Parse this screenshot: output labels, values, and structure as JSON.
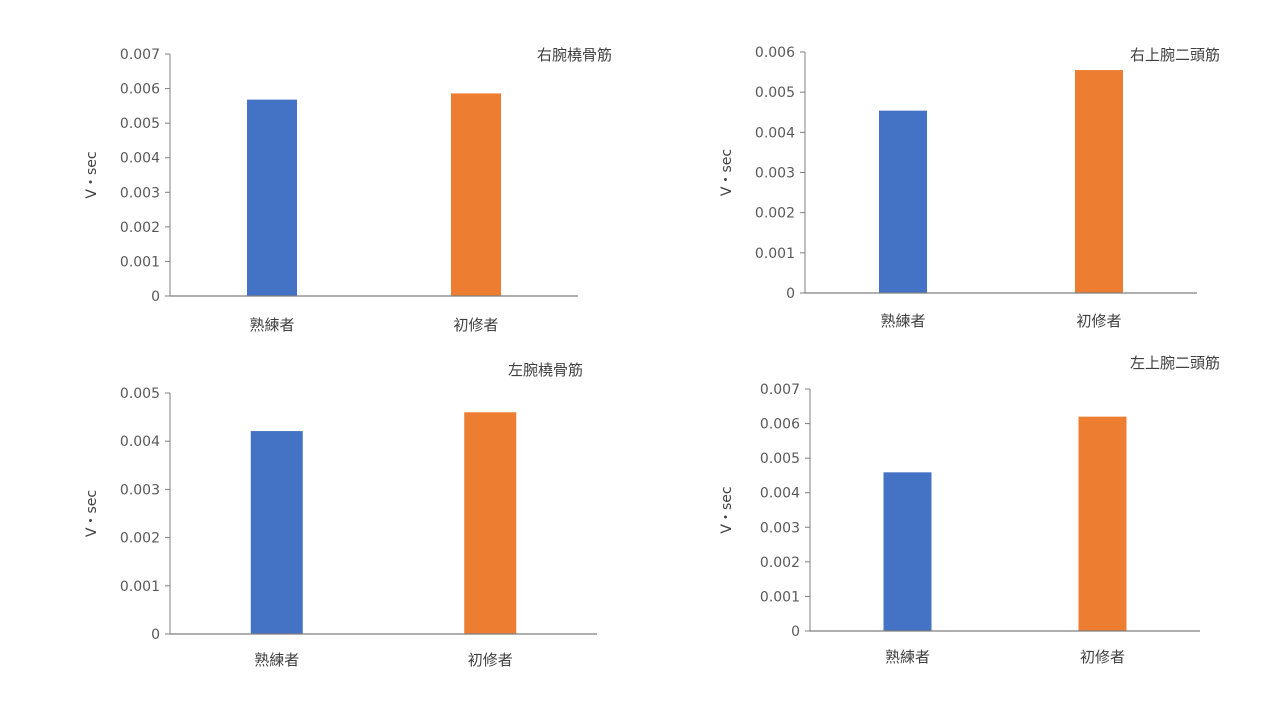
{
  "chart_data": [
    {
      "type": "bar",
      "title": "右腕橈骨筋",
      "categories": [
        "熟練者",
        "初修者"
      ],
      "values": [
        0.00568,
        0.00586
      ],
      "ylabel": "V・sec",
      "ylim": [
        0,
        0.007
      ],
      "yticks": [
        "0",
        "0.001",
        "0.002",
        "0.003",
        "0.004",
        "0.005",
        "0.006",
        "0.007"
      ],
      "colors": [
        "#4472C4",
        "#ED7D31"
      ],
      "grid": false
    },
    {
      "type": "bar",
      "title": "右上腕二頭筋",
      "categories": [
        "熟練者",
        "初修者"
      ],
      "values": [
        0.00454,
        0.00555
      ],
      "ylabel": "V・sec",
      "ylim": [
        0,
        0.006
      ],
      "yticks": [
        "0",
        "0.001",
        "0.002",
        "0.003",
        "0.004",
        "0.005",
        "0.006"
      ],
      "colors": [
        "#4472C4",
        "#ED7D31"
      ],
      "grid": false
    },
    {
      "type": "bar",
      "title": "左腕橈骨筋",
      "categories": [
        "熟練者",
        "初修者"
      ],
      "values": [
        0.00421,
        0.0046
      ],
      "ylabel": "V・sec",
      "ylim": [
        0,
        0.005
      ],
      "yticks": [
        "0",
        "0.001",
        "0.002",
        "0.003",
        "0.004",
        "0.005"
      ],
      "colors": [
        "#4472C4",
        "#ED7D31"
      ],
      "grid": false
    },
    {
      "type": "bar",
      "title": "左上腕二頭筋",
      "categories": [
        "熟練者",
        "初修者"
      ],
      "values": [
        0.00459,
        0.0062
      ],
      "ylabel": "V・sec",
      "ylim": [
        0,
        0.007
      ],
      "yticks": [
        "0",
        "0.001",
        "0.002",
        "0.003",
        "0.004",
        "0.005",
        "0.006",
        "0.007"
      ],
      "colors": [
        "#4472C4",
        "#ED7D31"
      ],
      "grid": false
    }
  ]
}
